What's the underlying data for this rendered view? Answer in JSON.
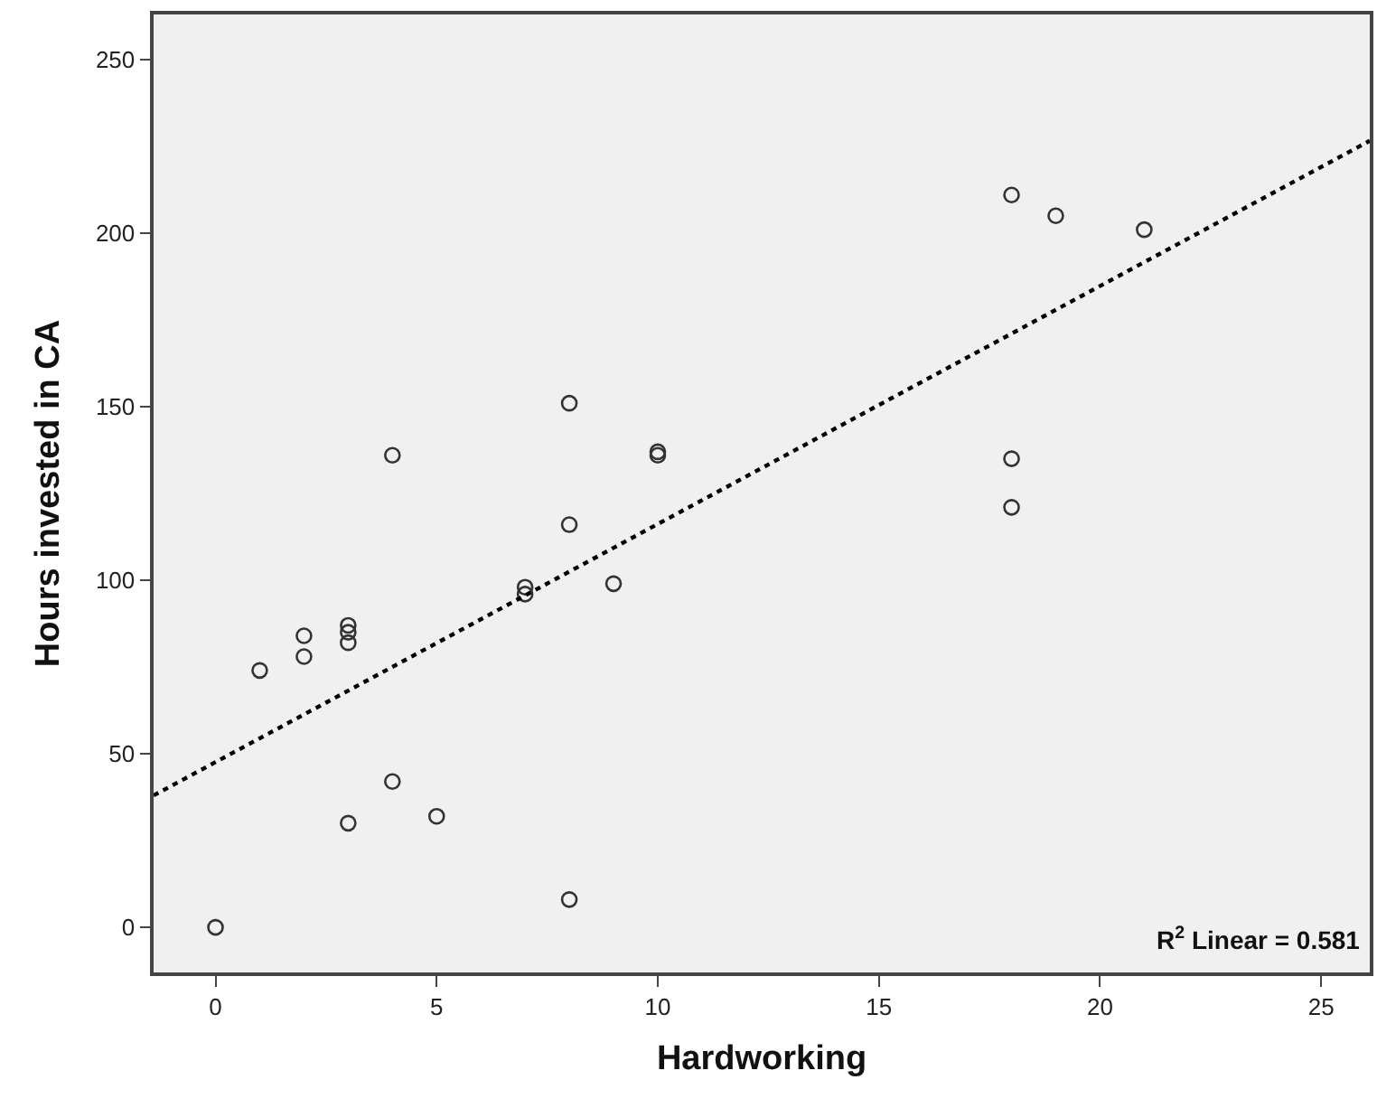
{
  "chart_data": {
    "type": "scatter",
    "xlabel": "Hardworking",
    "ylabel": "Hours invested in CA",
    "xlim": [
      -1.4,
      26.1
    ],
    "ylim": [
      -13,
      263
    ],
    "xticks": [
      0,
      5,
      10,
      15,
      20,
      25
    ],
    "yticks": [
      0,
      50,
      100,
      150,
      200,
      250
    ],
    "grid": false,
    "series": [
      {
        "marker": "circle",
        "color": "#333333",
        "x": [
          0,
          1,
          2,
          2,
          3,
          3,
          3,
          3,
          4,
          4,
          5,
          7,
          7,
          8,
          8,
          8,
          9,
          10,
          10,
          18,
          19,
          21,
          18,
          18
        ],
        "values": [
          0,
          74,
          78,
          84,
          82,
          85,
          87,
          30,
          42,
          136,
          32,
          96,
          98,
          116,
          151,
          8,
          99,
          136,
          137,
          211,
          205,
          201,
          135,
          121
        ]
      },
      {
        "type": "line",
        "color": "#000000",
        "line_style": "dotted",
        "x": [
          -1.4,
          26.1
        ],
        "values": [
          38.0,
          226.6
        ]
      }
    ],
    "annotations": [
      "R$^{2}$ Linear = 0.581"
    ]
  }
}
